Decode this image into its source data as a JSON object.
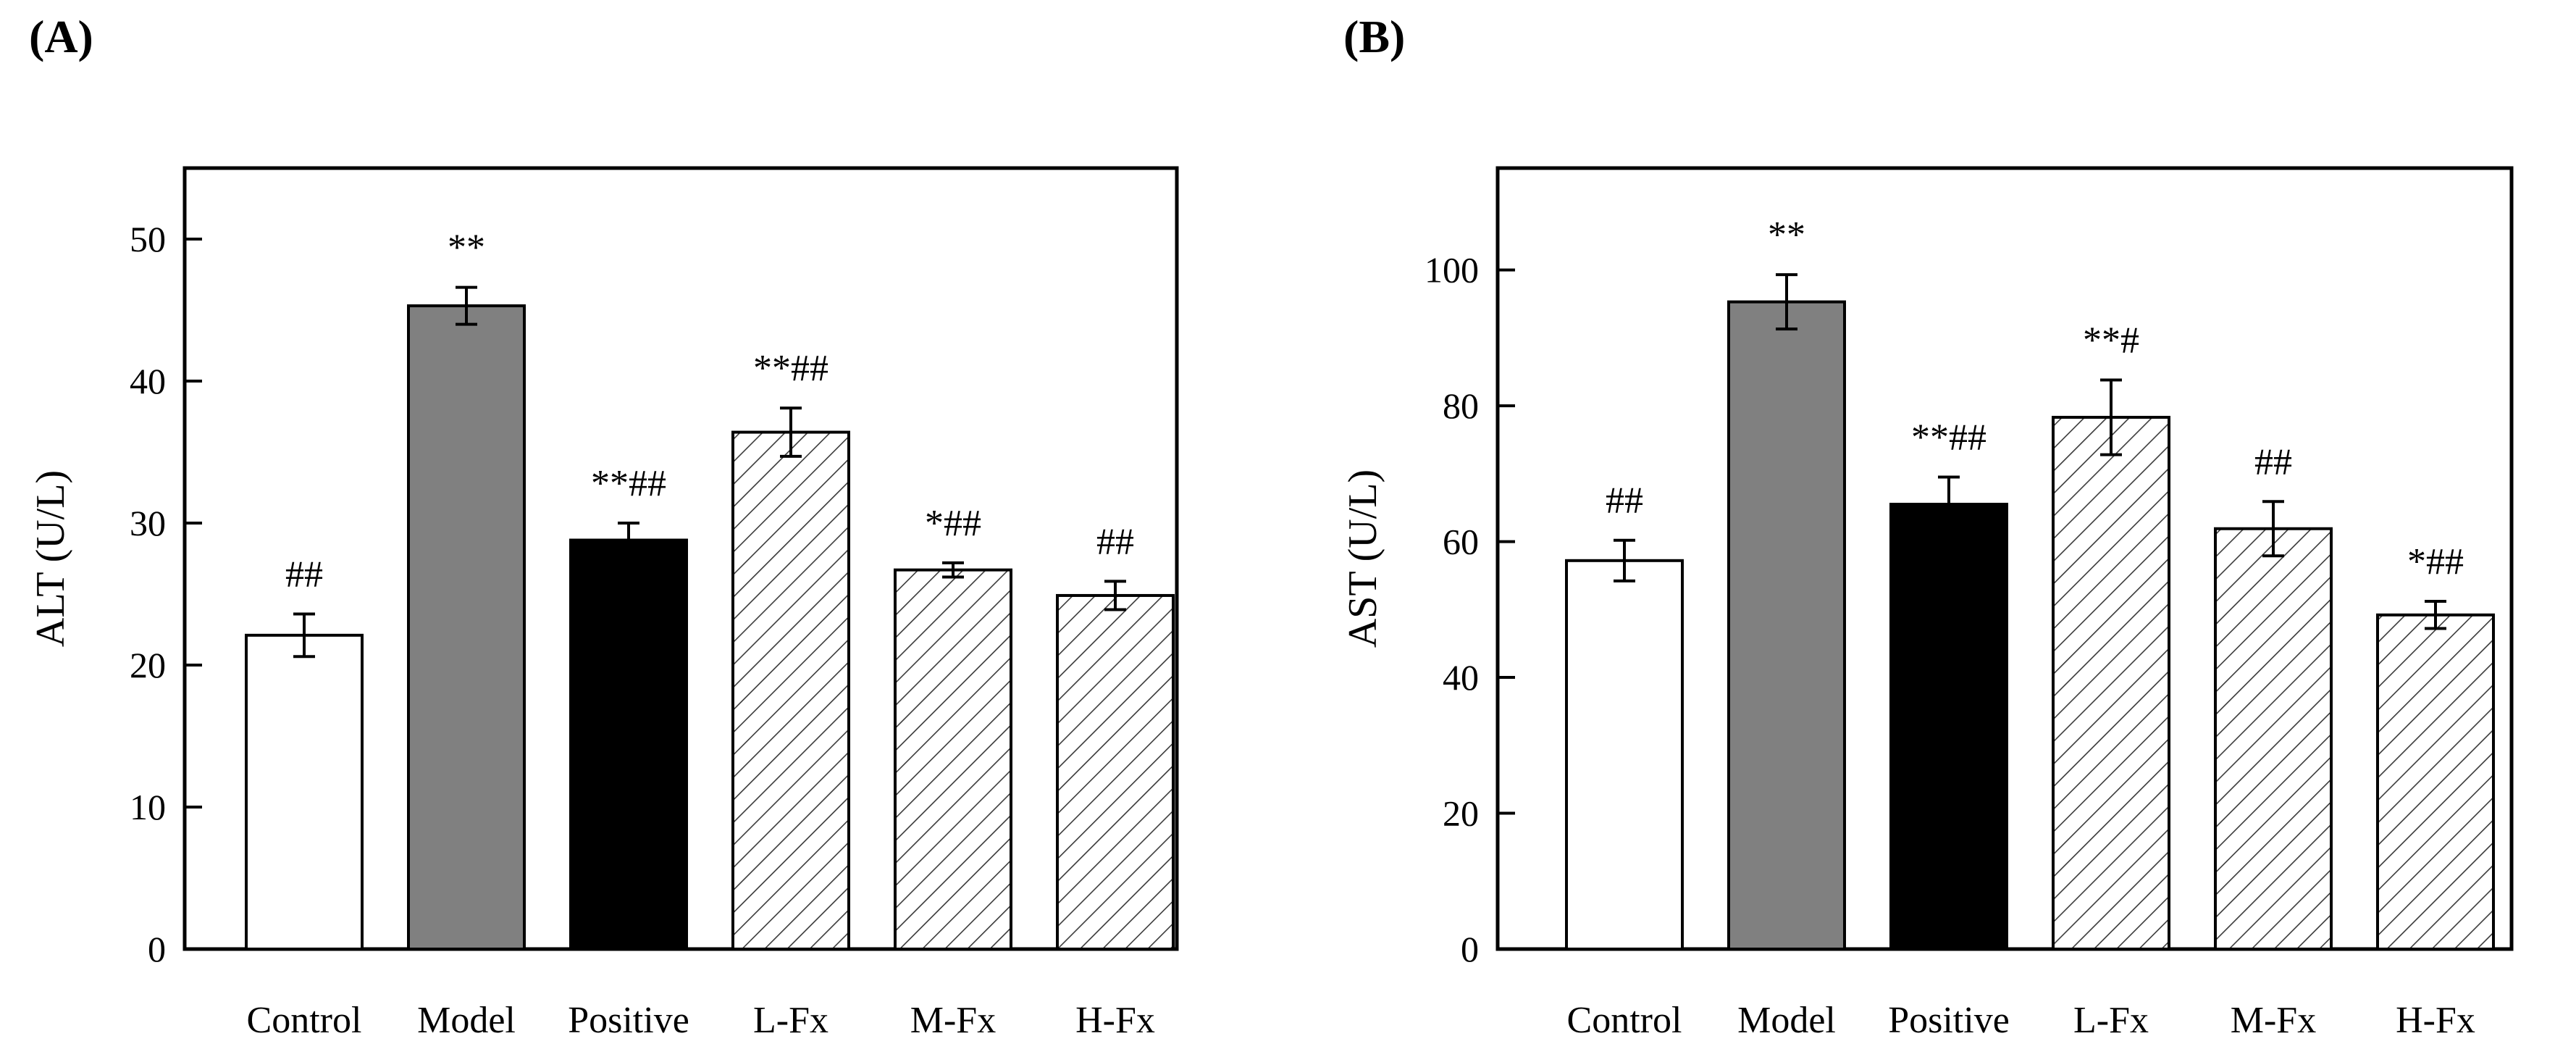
{
  "chart_data": [
    {
      "panel_label": "(A)",
      "type": "bar",
      "categories": [
        "Control",
        "Model",
        "Positive",
        "L-Fx",
        "M-Fx",
        "H-Fx"
      ],
      "values": [
        22.1,
        45.3,
        28.8,
        36.4,
        26.7,
        24.9
      ],
      "errors": [
        1.5,
        1.3,
        1.2,
        1.7,
        0.5,
        1.0
      ],
      "annotations": [
        "##",
        "**",
        "**##",
        "**##",
        "*##",
        "##"
      ],
      "fills": [
        "white",
        "gray",
        "black",
        "hatch",
        "hatch",
        "hatch"
      ],
      "ylabel": "ALT (U/L)",
      "xlabel": "",
      "ylim": [
        0,
        55
      ],
      "yticks": [
        0,
        10,
        20,
        30,
        40,
        50
      ],
      "ytick_labels": [
        "0",
        "10",
        "20",
        "30",
        "40",
        "50"
      ]
    },
    {
      "panel_label": "(B)",
      "type": "bar",
      "categories": [
        "Control",
        "Model",
        "Positive",
        "L-Fx",
        "M-Fx",
        "H-Fx"
      ],
      "values": [
        57.2,
        95.3,
        65.5,
        78.3,
        61.9,
        49.2
      ],
      "errors": [
        3.0,
        4.0,
        4.0,
        5.5,
        4.0,
        2.0
      ],
      "annotations": [
        "##",
        "**",
        "**##",
        "**#",
        "##",
        "*##"
      ],
      "fills": [
        "white",
        "gray",
        "black",
        "hatch",
        "hatch",
        "hatch"
      ],
      "ylabel": "AST (U/L)",
      "xlabel": "",
      "ylim": [
        0,
        115
      ],
      "yticks": [
        0,
        20,
        40,
        60,
        80,
        100
      ],
      "ytick_labels": [
        "0",
        "20",
        "40",
        "60",
        "80",
        "100"
      ]
    }
  ],
  "colors": {
    "gray": "#808080",
    "black": "#000000",
    "white": "#ffffff",
    "axis": "#000000"
  }
}
